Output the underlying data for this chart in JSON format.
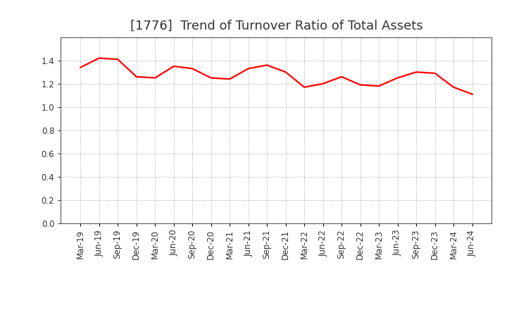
{
  "title": "[1776]  Trend of Turnover Ratio of Total Assets",
  "labels": [
    "Mar-19",
    "Jun-19",
    "Sep-19",
    "Dec-19",
    "Mar-20",
    "Jun-20",
    "Sep-20",
    "Dec-20",
    "Mar-21",
    "Jun-21",
    "Sep-21",
    "Dec-21",
    "Mar-22",
    "Jun-22",
    "Sep-22",
    "Dec-22",
    "Mar-23",
    "Jun-23",
    "Sep-23",
    "Dec-23",
    "Mar-24",
    "Jun-24"
  ],
  "values": [
    1.34,
    1.42,
    1.41,
    1.26,
    1.25,
    1.35,
    1.33,
    1.25,
    1.24,
    1.33,
    1.36,
    1.3,
    1.17,
    1.2,
    1.26,
    1.19,
    1.18,
    1.25,
    1.3,
    1.29,
    1.17,
    1.11
  ],
  "line_color": "#ff0000",
  "line_width": 1.6,
  "ylim": [
    0.0,
    1.6
  ],
  "yticks": [
    0.0,
    0.2,
    0.4,
    0.6,
    0.8,
    1.0,
    1.2,
    1.4
  ],
  "grid_color": "#999999",
  "grid_style": "dotted",
  "bg_color": "#ffffff",
  "title_fontsize": 13,
  "tick_fontsize": 8.5,
  "title_color": "#333333"
}
